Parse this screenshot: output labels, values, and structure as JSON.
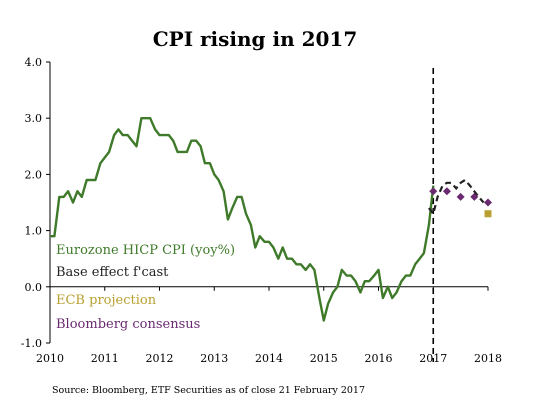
{
  "chart_data": {
    "type": "line",
    "title": "CPI rising in 2017",
    "xlabel": "",
    "ylabel": "",
    "ylim": [
      -1.0,
      4.0
    ],
    "xlim": [
      2010,
      2018
    ],
    "y_ticks": [
      "4.0",
      "3.0",
      "2.0",
      "1.0",
      "0.0",
      "-1.0"
    ],
    "x_ticks": [
      "2010",
      "2011",
      "2012",
      "2013",
      "2014",
      "2015",
      "2016",
      "2017",
      "2018"
    ],
    "grid": false,
    "legend_position": "bottom-left",
    "marker_date": 2017.0,
    "series": [
      {
        "name": "Eurozone HICP CPI (yoy%)",
        "color": "#3f7a2a",
        "style": "solid",
        "x": [
          2010.0,
          2010.08,
          2010.17,
          2010.25,
          2010.33,
          2010.42,
          2010.5,
          2010.58,
          2010.67,
          2010.75,
          2010.83,
          2010.92,
          2011.0,
          2011.08,
          2011.17,
          2011.25,
          2011.33,
          2011.42,
          2011.5,
          2011.58,
          2011.67,
          2011.75,
          2011.83,
          2011.92,
          2012.0,
          2012.08,
          2012.17,
          2012.25,
          2012.33,
          2012.42,
          2012.5,
          2012.58,
          2012.67,
          2012.75,
          2012.83,
          2012.92,
          2013.0,
          2013.08,
          2013.17,
          2013.25,
          2013.33,
          2013.42,
          2013.5,
          2013.58,
          2013.67,
          2013.75,
          2013.83,
          2013.92,
          2014.0,
          2014.08,
          2014.17,
          2014.25,
          2014.33,
          2014.42,
          2014.5,
          2014.58,
          2014.67,
          2014.75,
          2014.83,
          2014.92,
          2015.0,
          2015.08,
          2015.17,
          2015.25,
          2015.33,
          2015.42,
          2015.5,
          2015.58,
          2015.67,
          2015.75,
          2015.83,
          2015.92,
          2016.0,
          2016.08,
          2016.17,
          2016.25,
          2016.33,
          2016.42,
          2016.5,
          2016.58,
          2016.67,
          2016.75,
          2016.83,
          2016.92,
          2017.0
        ],
        "y": [
          0.9,
          0.9,
          1.6,
          1.6,
          1.7,
          1.5,
          1.7,
          1.6,
          1.9,
          1.9,
          1.9,
          2.2,
          2.3,
          2.4,
          2.7,
          2.8,
          2.7,
          2.7,
          2.6,
          2.5,
          3.0,
          3.0,
          3.0,
          2.8,
          2.7,
          2.7,
          2.7,
          2.6,
          2.4,
          2.4,
          2.4,
          2.6,
          2.6,
          2.5,
          2.2,
          2.2,
          2.0,
          1.9,
          1.7,
          1.2,
          1.4,
          1.6,
          1.6,
          1.3,
          1.1,
          0.7,
          0.9,
          0.8,
          0.8,
          0.7,
          0.5,
          0.7,
          0.5,
          0.5,
          0.4,
          0.4,
          0.3,
          0.4,
          0.3,
          -0.2,
          -0.6,
          -0.3,
          -0.1,
          0.0,
          0.3,
          0.2,
          0.2,
          0.1,
          -0.1,
          0.1,
          0.1,
          0.2,
          0.3,
          -0.2,
          0.0,
          -0.2,
          -0.1,
          0.1,
          0.2,
          0.2,
          0.4,
          0.5,
          0.6,
          1.1,
          1.8
        ]
      },
      {
        "name": "Base effect f'cast",
        "color": "#222222",
        "style": "dashed",
        "x": [
          2016.92,
          2017.0,
          2017.08,
          2017.17,
          2017.25,
          2017.33,
          2017.42,
          2017.5,
          2017.58,
          2017.67,
          2017.75,
          2017.83,
          2017.92
        ],
        "y": [
          1.4,
          1.3,
          1.6,
          1.8,
          1.85,
          1.85,
          1.75,
          1.85,
          1.9,
          1.8,
          1.7,
          1.6,
          1.5
        ]
      },
      {
        "name": "ECB projection",
        "color": "#b8a030",
        "style": "square-marker",
        "x": [
          2018.0
        ],
        "y": [
          1.3
        ]
      },
      {
        "name": "Bloomberg consensus",
        "color": "#6a2a70",
        "style": "diamond-marker",
        "x": [
          2017.0,
          2017.25,
          2017.5,
          2017.75,
          2018.0
        ],
        "y": [
          1.7,
          1.7,
          1.6,
          1.6,
          1.5
        ]
      }
    ],
    "source": "Source: Bloomberg, ETF Securities as of close 21 February 2017"
  }
}
